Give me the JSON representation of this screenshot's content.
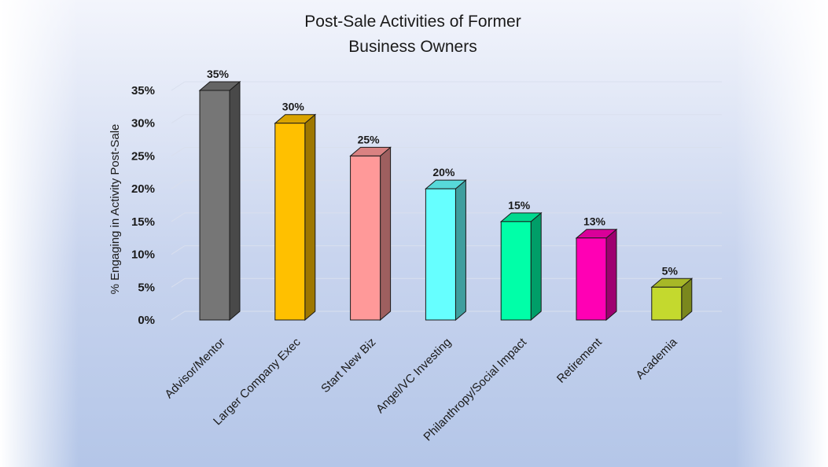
{
  "chart_data": {
    "type": "bar",
    "title_lines": [
      "Post-Sale Activities of Former",
      "Business Owners"
    ],
    "ylabel": "% Engaging in Activity Post-Sale",
    "xlabel": "",
    "categories": [
      "Advisor/Mentor",
      "Larger Company Exec",
      "Start New Biz",
      "Angel/VC Investing",
      "Philanthropy/Social Impact",
      "Retirement",
      "Academia"
    ],
    "values": [
      35,
      30,
      25,
      20,
      15,
      12.5,
      5
    ],
    "data_labels": [
      "35%",
      "30%",
      "25%",
      "20%",
      "15%",
      "13%",
      "5%"
    ],
    "ylim": [
      0,
      35
    ],
    "yticks": [
      0,
      5,
      10,
      15,
      20,
      25,
      30,
      35
    ],
    "ytick_labels": [
      "0%",
      "5%",
      "10%",
      "15%",
      "20%",
      "25%",
      "30%",
      "35%"
    ],
    "grid": true,
    "legend": "none",
    "style": "3d-column",
    "colors": [
      "#767676",
      "#ffc000",
      "#ff9999",
      "#66ffff",
      "#00ffa8",
      "#ff00b4",
      "#c4d92e"
    ]
  }
}
